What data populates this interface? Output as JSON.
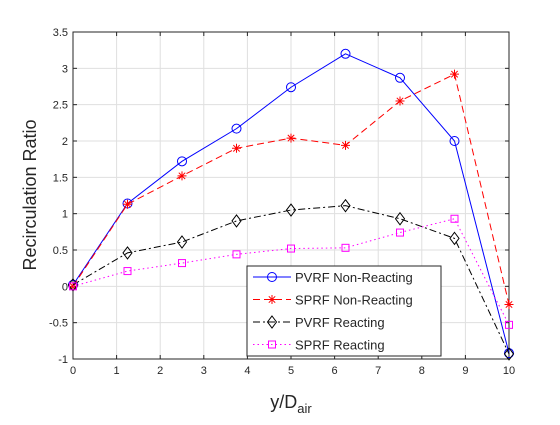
{
  "chart_data": {
    "type": "line",
    "title": "",
    "xlabel_base": "y/D",
    "xlabel_sub": "air",
    "ylabel": "Recirculation Ratio",
    "xlim": [
      0,
      10
    ],
    "ylim": [
      -1,
      3.5
    ],
    "grid": true,
    "legend_position": "bottom-right",
    "x_ticks": [
      0,
      1,
      2,
      3,
      4,
      5,
      6,
      7,
      8,
      9,
      10
    ],
    "x_tick_labels": [
      "0",
      "1",
      "2",
      "3",
      "4",
      "5",
      "6",
      "7",
      "8",
      "9",
      "10"
    ],
    "y_ticks": [
      -1,
      -0.5,
      0,
      0.5,
      1,
      1.5,
      2,
      2.5,
      3,
      3.5
    ],
    "y_tick_labels": [
      "-1",
      "-0.5",
      "0",
      "0.5",
      "1",
      "1.5",
      "2",
      "2.5",
      "3",
      "3.5"
    ],
    "x": [
      0,
      1.25,
      2.5,
      3.75,
      5,
      6.25,
      7.5,
      8.75,
      10
    ],
    "series": [
      {
        "name": "PVRF Non-Reacting",
        "color": "#0000ff",
        "dash": "solid",
        "marker": "circle",
        "values": [
          0.02,
          1.14,
          1.72,
          2.17,
          2.74,
          3.2,
          2.87,
          2.0,
          -0.92
        ]
      },
      {
        "name": "SPRF Non-Reacting",
        "color": "#ff0000",
        "dash": "dashed",
        "marker": "asterisk",
        "values": [
          0.0,
          1.13,
          1.52,
          1.9,
          2.04,
          1.94,
          2.55,
          2.92,
          -0.25
        ]
      },
      {
        "name": "PVRF Reacting",
        "color": "#000000",
        "dash": "dashdot",
        "marker": "diamond",
        "values": [
          0.02,
          0.46,
          0.61,
          0.9,
          1.05,
          1.11,
          0.93,
          0.66,
          -0.93
        ]
      },
      {
        "name": "SPRF Reacting",
        "color": "#ff00ff",
        "dash": "dotted",
        "marker": "square",
        "values": [
          0.0,
          0.21,
          0.32,
          0.44,
          0.52,
          0.53,
          0.74,
          0.93,
          -0.53
        ]
      }
    ]
  }
}
